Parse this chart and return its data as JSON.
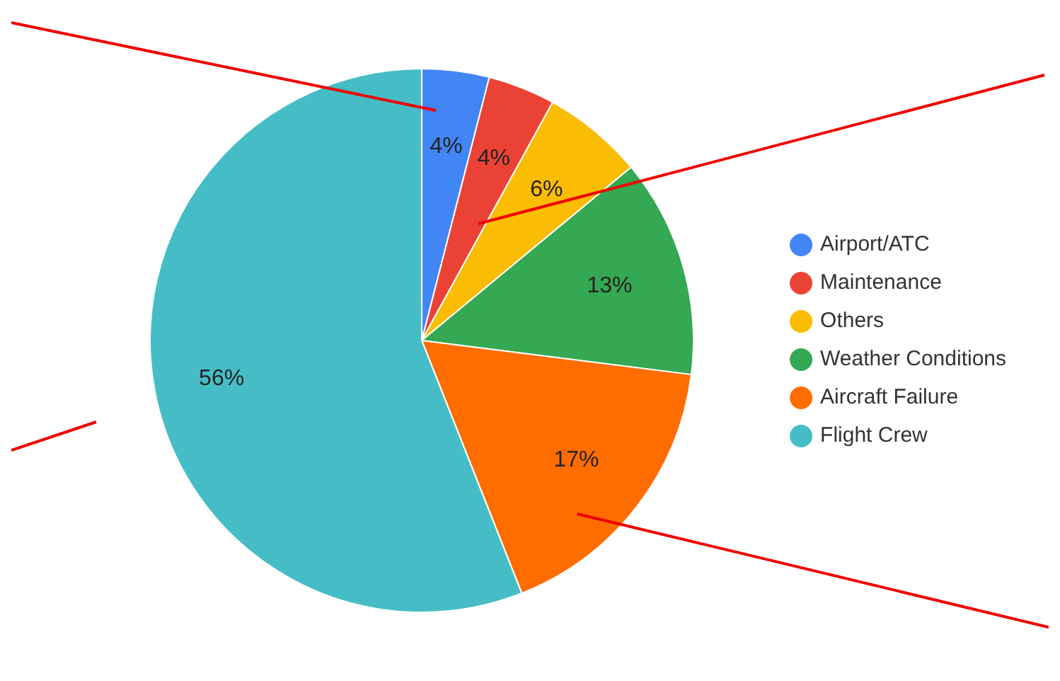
{
  "chart_data": {
    "type": "pie",
    "categories": [
      "Airport/ATC",
      "Maintenance",
      "Others",
      "Weather Conditions",
      "Aircraft Failure",
      "Flight Crew"
    ],
    "values": [
      4,
      4,
      6,
      13,
      17,
      56
    ],
    "colors": [
      "#4285f4",
      "#ea4335",
      "#fbbc04",
      "#34a853",
      "#ff6d01",
      "#46bdc6"
    ],
    "value_labels": [
      "4%",
      "4%",
      "6%",
      "13%",
      "17%",
      "56%"
    ],
    "legend": "right"
  }
}
